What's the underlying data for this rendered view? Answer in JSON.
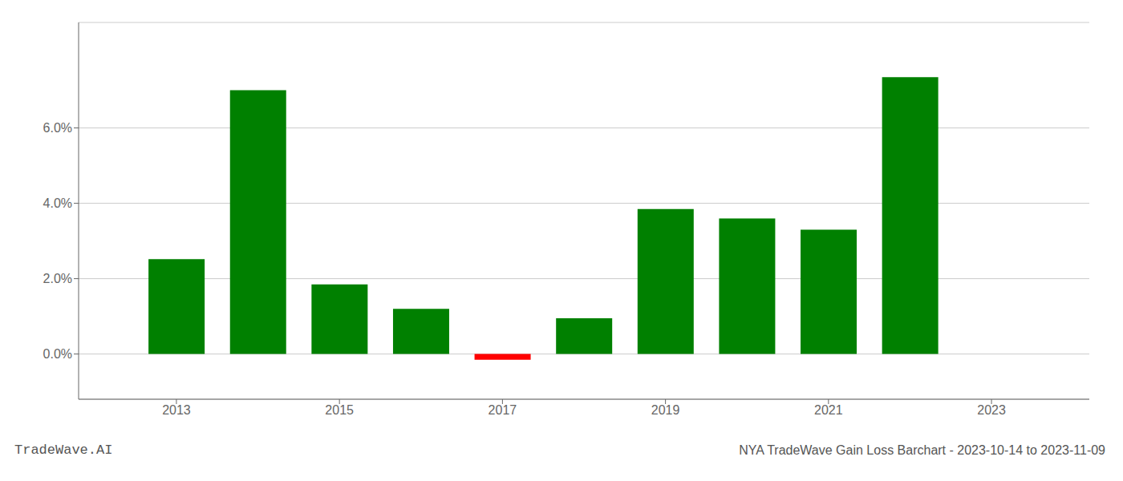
{
  "chart_data": {
    "type": "bar",
    "x": [
      2013,
      2014,
      2015,
      2016,
      2017,
      2018,
      2019,
      2020,
      2021,
      2022
    ],
    "values": [
      0.0252,
      0.07,
      0.0185,
      0.012,
      -0.0015,
      0.0095,
      0.0385,
      0.036,
      0.033,
      0.0735
    ],
    "colors": [
      "#008000",
      "#008000",
      "#008000",
      "#008000",
      "#ff0000",
      "#008000",
      "#008000",
      "#008000",
      "#008000",
      "#008000"
    ],
    "xlim": [
      2011.8,
      2024.2
    ],
    "xticks": [
      2013,
      2015,
      2017,
      2019,
      2021,
      2023
    ],
    "ylim": [
      -0.012,
      0.088
    ],
    "yticks": [
      {
        "value": 0.0,
        "label": "0.0%"
      },
      {
        "value": 0.02,
        "label": "2.0%"
      },
      {
        "value": 0.04,
        "label": "4.0%"
      },
      {
        "value": 0.06,
        "label": "6.0%"
      }
    ],
    "grid": true,
    "annotations": [
      "TradeWave.AI",
      "NYA TradeWave Gain Loss Barchart - 2023-10-14 to 2023-11-09"
    ]
  }
}
